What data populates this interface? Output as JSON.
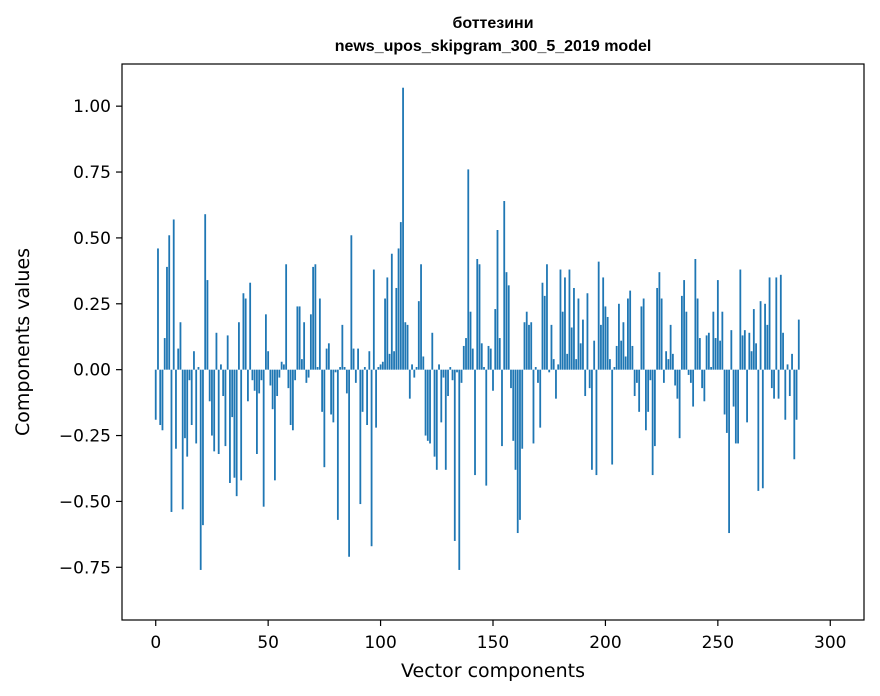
{
  "chart_data": {
    "type": "bar",
    "title": "боттезини",
    "subtitle": "news_upos_skipgram_300_5_2019 model",
    "xlabel": "Vector components",
    "ylabel": "Components values",
    "xlim": [
      -15,
      315
    ],
    "ylim": [
      -0.95,
      1.16
    ],
    "xticks": [
      0,
      50,
      100,
      150,
      200,
      250,
      300
    ],
    "xtick_labels": [
      "0",
      "50",
      "100",
      "150",
      "200",
      "250",
      "300"
    ],
    "yticks": [
      1.0,
      0.75,
      0.5,
      0.25,
      0.0,
      -0.25,
      -0.5,
      -0.75
    ],
    "ytick_labels": [
      "1.00",
      "0.75",
      "0.50",
      "0.25",
      "0.00",
      "−0.25",
      "−0.50",
      "−0.75"
    ],
    "bar_color": "#1f77b4",
    "grid": false,
    "values": [
      -0.19,
      0.46,
      -0.21,
      -0.23,
      0.12,
      0.39,
      0.51,
      -0.54,
      0.57,
      -0.3,
      0.08,
      0.18,
      -0.53,
      -0.26,
      -0.33,
      -0.04,
      -0.21,
      0.07,
      -0.28,
      0.01,
      -0.76,
      -0.59,
      0.59,
      0.34,
      -0.12,
      -0.25,
      -0.31,
      0.14,
      -0.32,
      0.02,
      -0.1,
      -0.29,
      0.13,
      -0.43,
      -0.18,
      -0.41,
      -0.48,
      0.18,
      -0.42,
      0.29,
      0.27,
      -0.12,
      0.33,
      -0.04,
      -0.08,
      -0.32,
      -0.09,
      -0.04,
      -0.52,
      0.21,
      0.07,
      -0.06,
      -0.15,
      -0.42,
      -0.1,
      -0.03,
      0.03,
      0.02,
      0.4,
      -0.07,
      -0.21,
      -0.23,
      -0.04,
      0.24,
      0.24,
      0.04,
      0.18,
      -0.05,
      -0.03,
      0.21,
      0.39,
      0.4,
      0.01,
      0.27,
      -0.16,
      -0.37,
      0.08,
      0.1,
      -0.17,
      -0.2,
      -0.01,
      -0.57,
      0.01,
      0.17,
      0.01,
      -0.09,
      -0.71,
      0.51,
      0.08,
      -0.05,
      0.08,
      -0.51,
      -0.16,
      0.01,
      -0.21,
      0.07,
      -0.67,
      0.38,
      -0.22,
      0.01,
      0.02,
      0.03,
      0.27,
      0.35,
      0.06,
      0.44,
      0.07,
      0.31,
      0.46,
      0.56,
      1.07,
      0.18,
      0.17,
      -0.11,
      0.02,
      -0.03,
      0.01,
      0.26,
      0.4,
      0.05,
      -0.25,
      -0.27,
      -0.28,
      0.14,
      -0.33,
      -0.38,
      0.02,
      -0.2,
      -0.03,
      -0.38,
      -0.1,
      0.01,
      -0.04,
      -0.65,
      -0.01,
      -0.76,
      -0.05,
      0.09,
      0.12,
      0.76,
      0.22,
      0.08,
      -0.4,
      0.42,
      0.4,
      0.1,
      0.01,
      -0.44,
      0.09,
      0.08,
      -0.08,
      0.23,
      0.53,
      0.12,
      -0.29,
      0.64,
      0.37,
      0.32,
      -0.07,
      -0.27,
      -0.38,
      -0.62,
      -0.57,
      -0.3,
      0.18,
      0.22,
      0.17,
      0.18,
      -0.28,
      0.01,
      -0.05,
      -0.22,
      0.33,
      0.28,
      0.4,
      -0.01,
      0.17,
      0.04,
      -0.11,
      0.02,
      0.38,
      0.22,
      0.35,
      0.06,
      0.38,
      0.16,
      0.31,
      0.04,
      0.27,
      0.1,
      0.19,
      -0.1,
      0.29,
      -0.07,
      -0.38,
      0.11,
      -0.4,
      0.41,
      0.17,
      0.35,
      0.24,
      0.2,
      0.04,
      -0.36,
      0.01,
      0.09,
      0.25,
      0.11,
      0.18,
      0.05,
      0.27,
      0.3,
      0.09,
      -0.1,
      -0.05,
      -0.16,
      0.24,
      0.27,
      -0.23,
      -0.16,
      -0.04,
      -0.4,
      -0.29,
      0.31,
      0.37,
      0.27,
      -0.05,
      0.07,
      0.04,
      0.17,
      0.06,
      -0.06,
      -0.11,
      -0.26,
      0.28,
      0.34,
      0.22,
      -0.02,
      -0.05,
      -0.14,
      0.42,
      0.27,
      0.12,
      -0.07,
      -0.12,
      0.13,
      0.14,
      0.01,
      0.22,
      0.12,
      0.34,
      0.11,
      0.22,
      -0.17,
      -0.24,
      -0.62,
      0.15,
      -0.14,
      -0.28,
      -0.28,
      0.38,
      0.13,
      0.15,
      -0.2,
      0.14,
      0.07,
      0.23,
      0.1,
      -0.46,
      0.26,
      -0.45,
      0.25,
      0.17,
      0.35,
      -0.07,
      -0.11,
      0.35,
      -0.11,
      0.36,
      0.14,
      -0.19,
      0.02,
      -0.1,
      0.06,
      -0.34,
      -0.19,
      0.19
    ]
  }
}
